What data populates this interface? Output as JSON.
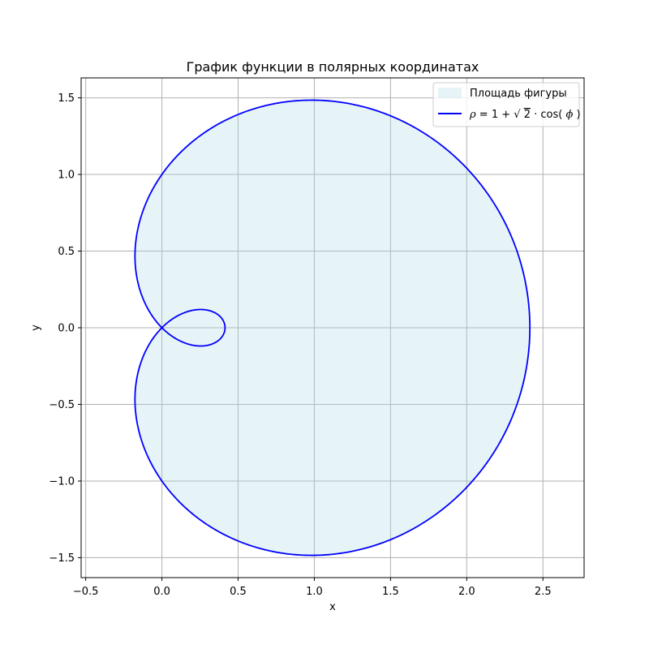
{
  "chart_data": {
    "type": "line",
    "title": "График функции в полярных координатах",
    "xlabel": "x",
    "ylabel": "y",
    "xlim": [
      -0.53,
      2.77
    ],
    "ylim": [
      -1.63,
      1.63
    ],
    "xticks": [
      -0.5,
      0.0,
      0.5,
      1.0,
      1.5,
      2.0,
      2.5
    ],
    "xtick_labels": [
      "−0.5",
      "0.0",
      "0.5",
      "1.0",
      "1.5",
      "2.0",
      "2.5"
    ],
    "yticks": [
      -1.5,
      -1.0,
      -0.5,
      0.0,
      0.5,
      1.0,
      1.5
    ],
    "ytick_labels": [
      "−1.5",
      "−1.0",
      "−0.5",
      "0.0",
      "0.5",
      "1.0",
      "1.5"
    ],
    "grid": true,
    "legend_placement": "top-right",
    "function": {
      "kind": "polar",
      "rho": "1 + sqrt(2) * cos(phi)",
      "phi_range": [
        0,
        6.283185307179586
      ],
      "samples": 720
    },
    "series": [
      {
        "name": "Площадь фигуры",
        "kind": "fill",
        "color": "#add8e6"
      },
      {
        "name": "ρ = 1 + √2 · cos(ϕ)",
        "kind": "line",
        "color": "#0000ff"
      }
    ],
    "legend": {
      "fill_label": "Площадь фигуры",
      "line_label": {
        "rho": "ρ",
        "eq": " = 1 + ",
        "sqrt": "√",
        "two": "2",
        "dot": " · cos(",
        "phi": "ϕ",
        "close": ")"
      }
    },
    "colors": {
      "fill": "#add8e6",
      "line": "#0000ff",
      "grid": "#b0b0b0",
      "axes": "#000000"
    }
  }
}
